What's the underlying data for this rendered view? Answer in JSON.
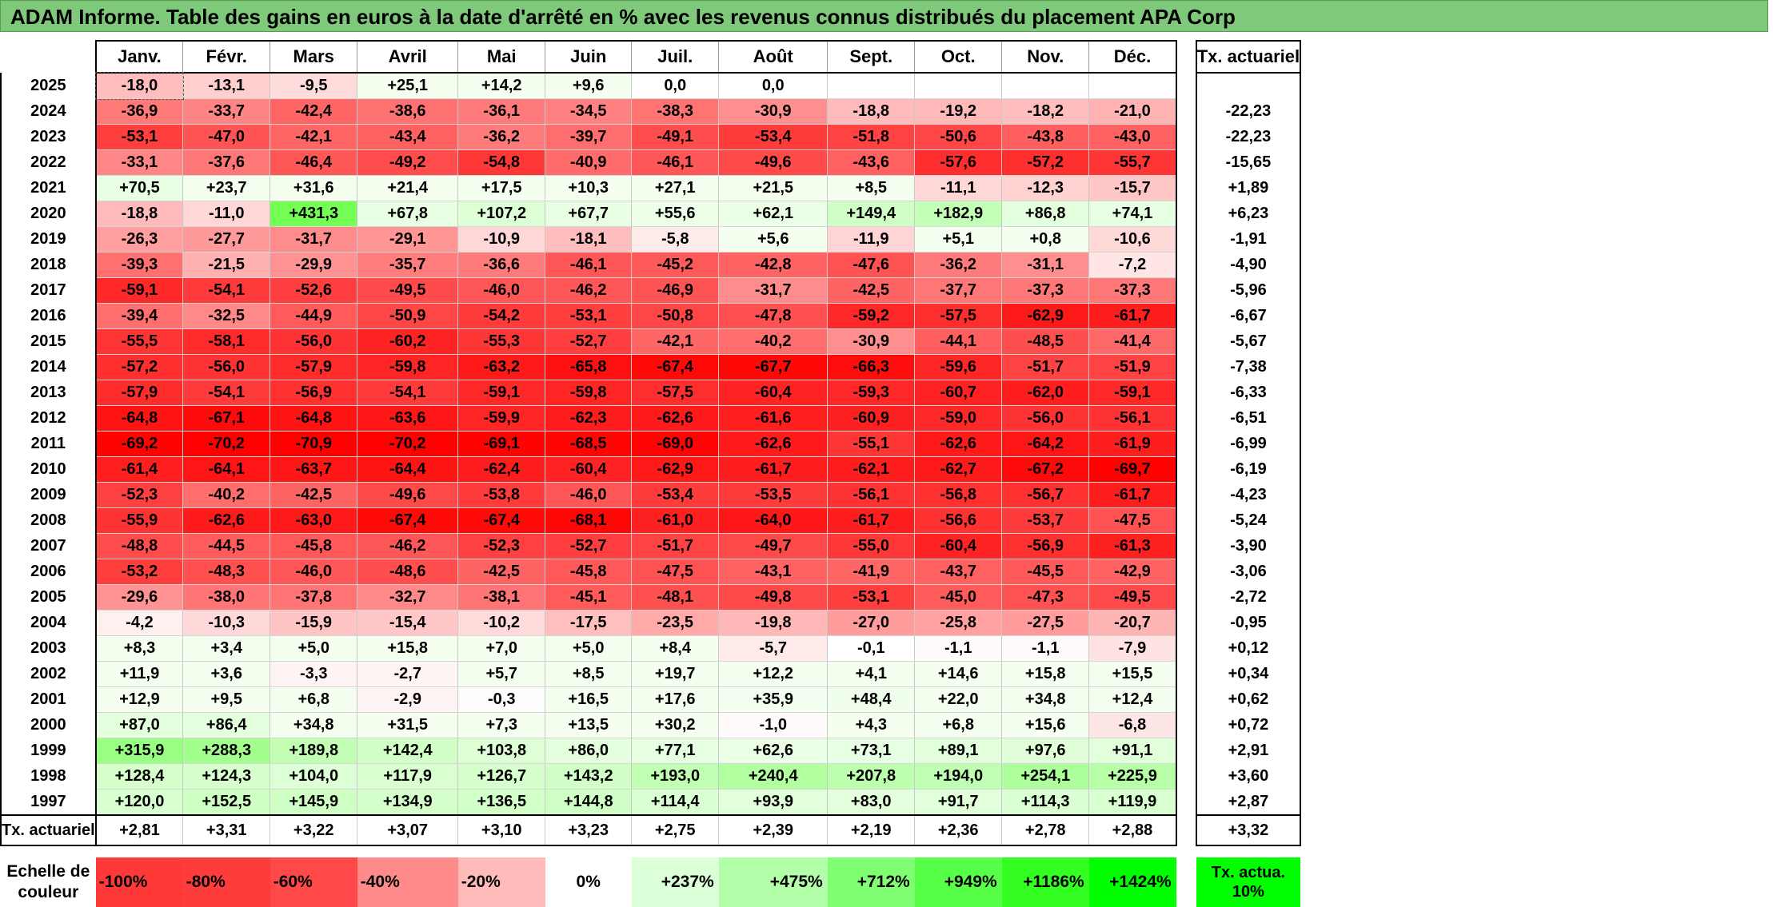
{
  "title": "ADAM Informe. Table des gains en euros à la date d'arrêté en % avec les revenus connus distribués du placement APA Corp",
  "months": [
    "Janv.",
    "Févr.",
    "Mars",
    "Avril",
    "Mai",
    "Juin",
    "Juil.",
    "Août",
    "Sept.",
    "Oct.",
    "Nov.",
    "Déc."
  ],
  "tx_header": "Tx. actuariel",
  "rows": [
    {
      "year": "2025",
      "values": [
        "-18,0",
        "-13,1",
        "-9,5",
        "+25,1",
        "+14,2",
        "+9,6",
        "0,0",
        "0,0",
        "",
        "",
        "",
        ""
      ],
      "tx": ""
    },
    {
      "year": "2024",
      "values": [
        "-36,9",
        "-33,7",
        "-42,4",
        "-38,6",
        "-36,1",
        "-34,5",
        "-38,3",
        "-30,9",
        "-18,8",
        "-19,2",
        "-18,2",
        "-21,0"
      ],
      "tx": "-22,23"
    },
    {
      "year": "2023",
      "values": [
        "-53,1",
        "-47,0",
        "-42,1",
        "-43,4",
        "-36,2",
        "-39,7",
        "-49,1",
        "-53,4",
        "-51,8",
        "-50,6",
        "-43,8",
        "-43,0"
      ],
      "tx": "-22,23"
    },
    {
      "year": "2022",
      "values": [
        "-33,1",
        "-37,6",
        "-46,4",
        "-49,2",
        "-54,8",
        "-40,9",
        "-46,1",
        "-49,6",
        "-43,6",
        "-57,6",
        "-57,2",
        "-55,7"
      ],
      "tx": "-15,65"
    },
    {
      "year": "2021",
      "values": [
        "+70,5",
        "+23,7",
        "+31,6",
        "+21,4",
        "+17,5",
        "+10,3",
        "+27,1",
        "+21,5",
        "+8,5",
        "-11,1",
        "-12,3",
        "-15,7"
      ],
      "tx": "+1,89"
    },
    {
      "year": "2020",
      "values": [
        "-18,8",
        "-11,0",
        "+431,3",
        "+67,8",
        "+107,2",
        "+67,7",
        "+55,6",
        "+62,1",
        "+149,4",
        "+182,9",
        "+86,8",
        "+74,1"
      ],
      "tx": "+6,23"
    },
    {
      "year": "2019",
      "values": [
        "-26,3",
        "-27,7",
        "-31,7",
        "-29,1",
        "-10,9",
        "-18,1",
        "-5,8",
        "+5,6",
        "-11,9",
        "+5,1",
        "+0,8",
        "-10,6"
      ],
      "tx": "-1,91"
    },
    {
      "year": "2018",
      "values": [
        "-39,3",
        "-21,5",
        "-29,9",
        "-35,7",
        "-36,6",
        "-46,1",
        "-45,2",
        "-42,8",
        "-47,6",
        "-36,2",
        "-31,1",
        "-7,2"
      ],
      "tx": "-4,90"
    },
    {
      "year": "2017",
      "values": [
        "-59,1",
        "-54,1",
        "-52,6",
        "-49,5",
        "-46,0",
        "-46,2",
        "-46,9",
        "-31,7",
        "-42,5",
        "-37,7",
        "-37,3",
        "-37,3"
      ],
      "tx": "-5,96"
    },
    {
      "year": "2016",
      "values": [
        "-39,4",
        "-32,5",
        "-44,9",
        "-50,9",
        "-54,2",
        "-53,1",
        "-50,8",
        "-47,8",
        "-59,2",
        "-57,5",
        "-62,9",
        "-61,7"
      ],
      "tx": "-6,67"
    },
    {
      "year": "2015",
      "values": [
        "-55,5",
        "-58,1",
        "-56,0",
        "-60,2",
        "-55,3",
        "-52,7",
        "-42,1",
        "-40,2",
        "-30,9",
        "-44,1",
        "-48,5",
        "-41,4"
      ],
      "tx": "-5,67"
    },
    {
      "year": "2014",
      "values": [
        "-57,2",
        "-56,0",
        "-57,9",
        "-59,8",
        "-63,2",
        "-65,8",
        "-67,4",
        "-67,7",
        "-66,3",
        "-59,6",
        "-51,7",
        "-51,9"
      ],
      "tx": "-7,38"
    },
    {
      "year": "2013",
      "values": [
        "-57,9",
        "-54,1",
        "-56,9",
        "-54,1",
        "-59,1",
        "-59,8",
        "-57,5",
        "-60,4",
        "-59,3",
        "-60,7",
        "-62,0",
        "-59,1"
      ],
      "tx": "-6,33"
    },
    {
      "year": "2012",
      "values": [
        "-64,8",
        "-67,1",
        "-64,8",
        "-63,6",
        "-59,9",
        "-62,3",
        "-62,6",
        "-61,6",
        "-60,9",
        "-59,0",
        "-56,0",
        "-56,1"
      ],
      "tx": "-6,51"
    },
    {
      "year": "2011",
      "values": [
        "-69,2",
        "-70,2",
        "-70,9",
        "-70,2",
        "-69,1",
        "-68,5",
        "-69,0",
        "-62,6",
        "-55,1",
        "-62,6",
        "-64,2",
        "-61,9"
      ],
      "tx": "-6,99"
    },
    {
      "year": "2010",
      "values": [
        "-61,4",
        "-64,1",
        "-63,7",
        "-64,4",
        "-62,4",
        "-60,4",
        "-62,9",
        "-61,7",
        "-62,1",
        "-62,7",
        "-67,2",
        "-69,7"
      ],
      "tx": "-6,19"
    },
    {
      "year": "2009",
      "values": [
        "-52,3",
        "-40,2",
        "-42,5",
        "-49,6",
        "-53,8",
        "-46,0",
        "-53,4",
        "-53,5",
        "-56,1",
        "-56,8",
        "-56,7",
        "-61,7"
      ],
      "tx": "-4,23"
    },
    {
      "year": "2008",
      "values": [
        "-55,9",
        "-62,6",
        "-63,0",
        "-67,4",
        "-67,4",
        "-68,1",
        "-61,0",
        "-64,0",
        "-61,7",
        "-56,6",
        "-53,7",
        "-47,5"
      ],
      "tx": "-5,24"
    },
    {
      "year": "2007",
      "values": [
        "-48,8",
        "-44,5",
        "-45,8",
        "-46,2",
        "-52,3",
        "-52,7",
        "-51,7",
        "-49,7",
        "-55,0",
        "-60,4",
        "-56,9",
        "-61,3"
      ],
      "tx": "-3,90"
    },
    {
      "year": "2006",
      "values": [
        "-53,2",
        "-48,3",
        "-46,0",
        "-48,6",
        "-42,5",
        "-45,8",
        "-47,5",
        "-43,1",
        "-41,9",
        "-43,7",
        "-45,5",
        "-42,9"
      ],
      "tx": "-3,06"
    },
    {
      "year": "2005",
      "values": [
        "-29,6",
        "-38,0",
        "-37,8",
        "-32,7",
        "-38,1",
        "-45,1",
        "-48,1",
        "-49,8",
        "-53,1",
        "-45,0",
        "-47,3",
        "-49,5"
      ],
      "tx": "-2,72"
    },
    {
      "year": "2004",
      "values": [
        "-4,2",
        "-10,3",
        "-15,9",
        "-15,4",
        "-10,2",
        "-17,5",
        "-23,5",
        "-19,8",
        "-27,0",
        "-25,8",
        "-27,5",
        "-20,7"
      ],
      "tx": "-0,95"
    },
    {
      "year": "2003",
      "values": [
        "+8,3",
        "+3,4",
        "+5,0",
        "+15,8",
        "+7,0",
        "+5,0",
        "+8,4",
        "-5,7",
        "-0,1",
        "-1,1",
        "-1,1",
        "-7,9"
      ],
      "tx": "+0,12"
    },
    {
      "year": "2002",
      "values": [
        "+11,9",
        "+3,6",
        "-3,3",
        "-2,7",
        "+5,7",
        "+8,5",
        "+19,7",
        "+12,2",
        "+4,1",
        "+14,6",
        "+15,8",
        "+15,5"
      ],
      "tx": "+0,34"
    },
    {
      "year": "2001",
      "values": [
        "+12,9",
        "+9,5",
        "+6,8",
        "-2,9",
        "-0,3",
        "+16,5",
        "+17,6",
        "+35,9",
        "+48,4",
        "+22,0",
        "+34,8",
        "+12,4"
      ],
      "tx": "+0,62"
    },
    {
      "year": "2000",
      "values": [
        "+87,0",
        "+86,4",
        "+34,8",
        "+31,5",
        "+7,3",
        "+13,5",
        "+30,2",
        "-1,0",
        "+4,3",
        "+6,8",
        "+15,6",
        "-6,8"
      ],
      "tx": "+0,72"
    },
    {
      "year": "1999",
      "values": [
        "+315,9",
        "+288,3",
        "+189,8",
        "+142,4",
        "+103,8",
        "+86,0",
        "+77,1",
        "+62,6",
        "+73,1",
        "+89,1",
        "+97,6",
        "+91,1"
      ],
      "tx": "+2,91"
    },
    {
      "year": "1998",
      "values": [
        "+128,4",
        "+124,3",
        "+104,0",
        "+117,9",
        "+126,7",
        "+143,2",
        "+193,0",
        "+240,4",
        "+207,8",
        "+194,0",
        "+254,1",
        "+225,9"
      ],
      "tx": "+3,60"
    },
    {
      "year": "1997",
      "values": [
        "+120,0",
        "+152,5",
        "+145,9",
        "+134,9",
        "+136,5",
        "+144,8",
        "+114,4",
        "+93,9",
        "+83,0",
        "+91,7",
        "+114,3",
        "+119,9"
      ],
      "tx": "+2,87"
    }
  ],
  "avg_row": {
    "label": "Tx. actuariel",
    "values": [
      "+2,81",
      "+3,31",
      "+3,22",
      "+3,07",
      "+3,10",
      "+3,23",
      "+2,75",
      "+2,39",
      "+2,19",
      "+2,36",
      "+2,78",
      "+2,88"
    ],
    "tx": "+3,32"
  },
  "scale": {
    "label": "Echelle de couleur",
    "items": [
      {
        "text": "-100%",
        "color": "#ff3838",
        "align": "l"
      },
      {
        "text": "-80%",
        "color": "#ff3c3c",
        "align": "l"
      },
      {
        "text": "-60%",
        "color": "#ff4848",
        "align": "l"
      },
      {
        "text": "-40%",
        "color": "#ff8a8a",
        "align": "l"
      },
      {
        "text": "-20%",
        "color": "#ffbaba",
        "align": "l"
      },
      {
        "text": "0%",
        "color": "#ffffff",
        "align": "c"
      },
      {
        "text": "+237%",
        "color": "#dbffd6",
        "align": "r"
      },
      {
        "text": "+475%",
        "color": "#b3ffa9",
        "align": "r"
      },
      {
        "text": "+712%",
        "color": "#80ff72",
        "align": "r"
      },
      {
        "text": "+949%",
        "color": "#57ff48",
        "align": "r"
      },
      {
        "text": "+1186%",
        "color": "#33ff22",
        "align": "r"
      },
      {
        "text": "+1424%",
        "color": "#00ff00",
        "align": "r"
      }
    ],
    "tx_label": "Tx. actua. 10%",
    "tx_color": "#00ff00"
  },
  "colors": {
    "title_bg": "#7ec97a",
    "neg_max": "#ff0000",
    "pos_max": "#00ff00",
    "neutral": "#ffffff"
  }
}
